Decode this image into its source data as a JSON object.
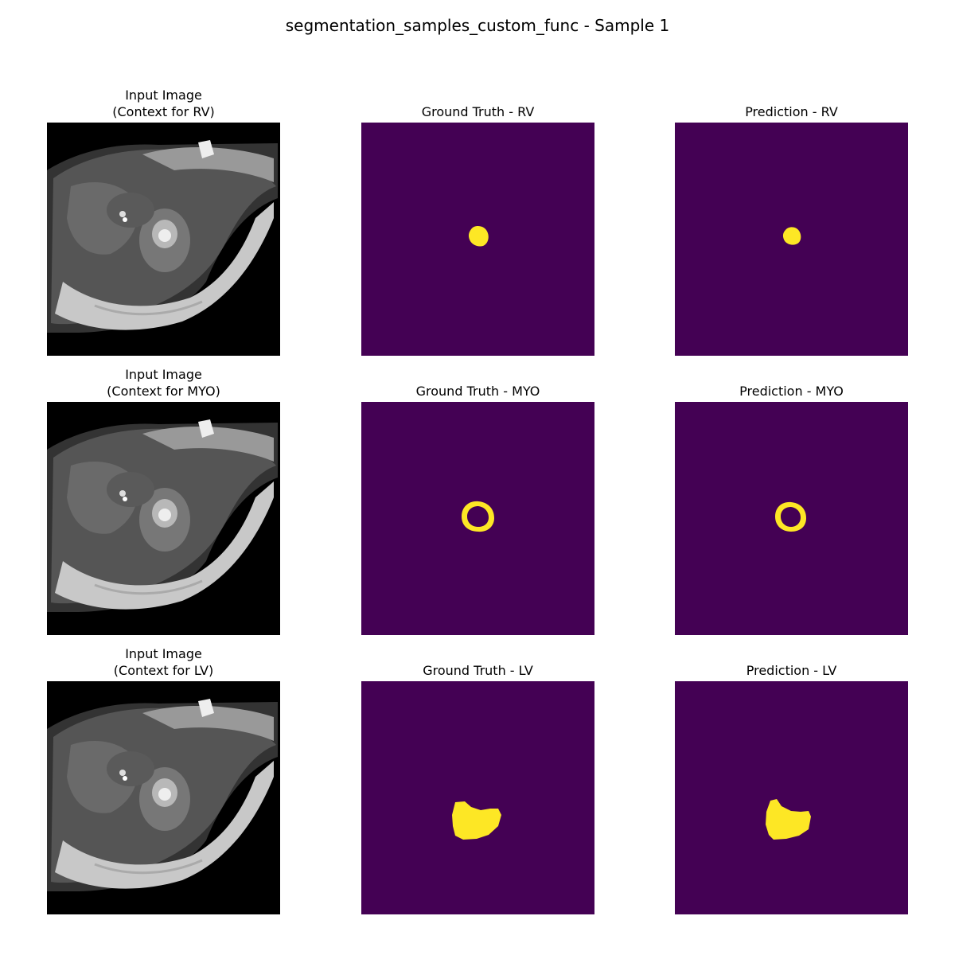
{
  "figure": {
    "title": "segmentation_samples_custom_func - Sample 1"
  },
  "colors": {
    "mask_background": "#440154",
    "mask_foreground": "#fde725",
    "image_background": "#000000"
  },
  "rows": [
    {
      "input_title": "Input Image\n(Context for RV)",
      "gt_title": "Ground Truth - RV",
      "pred_title": "Prediction - RV"
    },
    {
      "input_title": "Input Image\n(Context for MYO)",
      "gt_title": "Ground Truth - MYO",
      "pred_title": "Prediction - MYO"
    },
    {
      "input_title": "Input Image\n(Context for LV)",
      "gt_title": "Ground Truth - LV",
      "pred_title": "Prediction - LV"
    }
  ]
}
